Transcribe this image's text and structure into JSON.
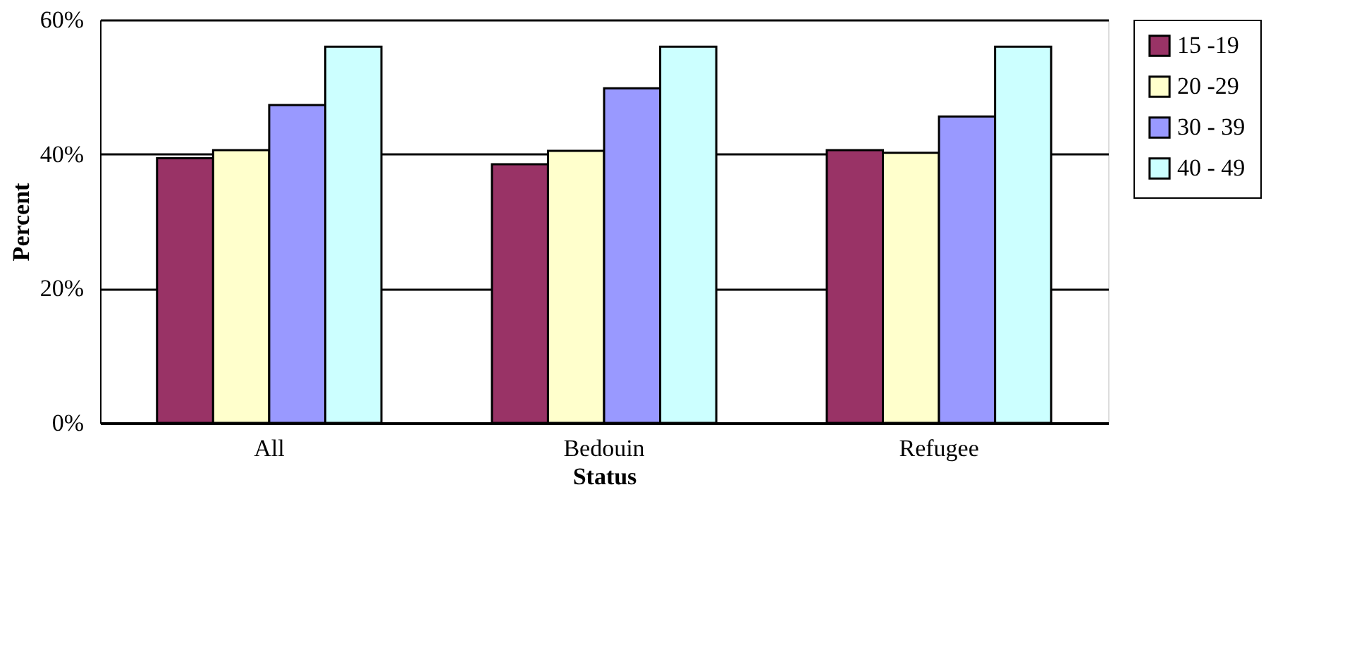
{
  "chart_data": {
    "type": "bar",
    "xlabel": "Status",
    "ylabel": "Percent",
    "categories": [
      "All",
      "Bedouin",
      "Refugee"
    ],
    "series": [
      {
        "name": "15 -19",
        "color": "#993366",
        "values": [
          39.4,
          38.5,
          40.6
        ]
      },
      {
        "name": "20 -29",
        "color": "#ffffcc",
        "values": [
          40.6,
          40.5,
          40.2
        ]
      },
      {
        "name": "30 - 39",
        "color": "#9999ff",
        "values": [
          47.3,
          49.8,
          45.6
        ]
      },
      {
        "name": "40 - 49",
        "color": "#ccffff",
        "values": [
          56.0,
          56.0,
          56.0
        ]
      }
    ],
    "ylim": [
      0,
      60
    ],
    "yticks": [
      {
        "value": 0,
        "label": "0%"
      },
      {
        "value": 20,
        "label": "20%"
      },
      {
        "value": 40,
        "label": "40%"
      },
      {
        "value": 60,
        "label": "60%"
      }
    ],
    "grid": "y",
    "legend": "right"
  }
}
